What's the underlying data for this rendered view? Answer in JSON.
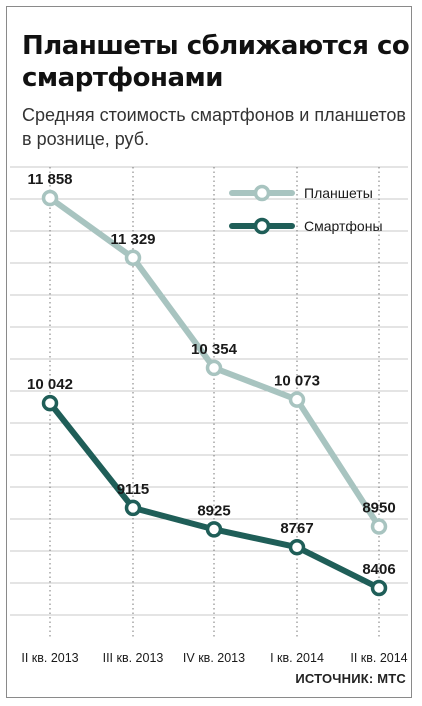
{
  "title": "Планшеты сближаются со смартфонами",
  "subtitle": "Средняя стоимость смартфонов и планшетов в рознице, руб.",
  "source": "ИСТОЧНИК: МТС",
  "colors": {
    "tablets": "#a8c4c0",
    "smartphones": "#1f5e58",
    "grid": "#c8c8c8"
  },
  "chart_data": {
    "type": "line",
    "categories": [
      "II кв. 2013",
      "III кв. 2013",
      "IV кв. 2013",
      "I кв. 2014",
      "II кв. 2014"
    ],
    "series": [
      {
        "name": "Планшеты",
        "values": [
          11858,
          11329,
          10354,
          10073,
          8950
        ],
        "labels": [
          "11 858",
          "11 329",
          "10 354",
          "10 073",
          "8950"
        ]
      },
      {
        "name": "Смартфоны",
        "values": [
          10042,
          9115,
          8925,
          8767,
          8406
        ],
        "labels": [
          "10 042",
          "9115",
          "8925",
          "8767",
          "8406"
        ]
      }
    ],
    "ylim": [
      7960,
      12250
    ],
    "legend": "top-right",
    "grid": true
  }
}
